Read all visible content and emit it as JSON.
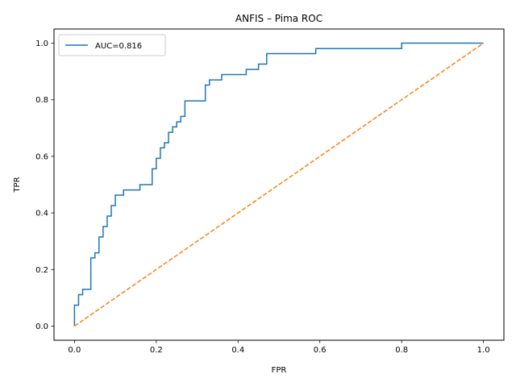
{
  "chart_data": {
    "type": "line",
    "title": "ANFIS – Pima ROC",
    "xlabel": "FPR",
    "ylabel": "TPR",
    "xlim": [
      -0.05,
      1.05
    ],
    "ylim": [
      -0.05,
      1.05
    ],
    "xticks": [
      0.0,
      0.2,
      0.4,
      0.6,
      0.8,
      1.0
    ],
    "yticks": [
      0.0,
      0.2,
      0.4,
      0.6,
      0.8,
      1.0
    ],
    "tick_labels_x": [
      "0.0",
      "0.2",
      "0.4",
      "0.6",
      "0.8",
      "1.0"
    ],
    "tick_labels_y": [
      "0.0",
      "0.2",
      "0.4",
      "0.6",
      "0.8",
      "1.0"
    ],
    "grid": false,
    "legend_position": "top-left",
    "series": [
      {
        "name": "AUC=0.816",
        "color": "#1f77b4",
        "style": "solid",
        "x": [
          0.0,
          0.0,
          0.01,
          0.01,
          0.02,
          0.02,
          0.04,
          0.04,
          0.05,
          0.05,
          0.06,
          0.06,
          0.07,
          0.07,
          0.08,
          0.08,
          0.09,
          0.09,
          0.1,
          0.1,
          0.12,
          0.12,
          0.16,
          0.16,
          0.19,
          0.19,
          0.2,
          0.2,
          0.21,
          0.21,
          0.22,
          0.22,
          0.23,
          0.23,
          0.24,
          0.24,
          0.25,
          0.25,
          0.26,
          0.26,
          0.27,
          0.27,
          0.32,
          0.32,
          0.33,
          0.33,
          0.36,
          0.36,
          0.42,
          0.42,
          0.45,
          0.45,
          0.47,
          0.47,
          0.59,
          0.59,
          0.8,
          0.8,
          1.0
        ],
        "y": [
          0.0,
          0.074,
          0.074,
          0.111,
          0.111,
          0.13,
          0.13,
          0.241,
          0.241,
          0.259,
          0.259,
          0.315,
          0.315,
          0.352,
          0.352,
          0.389,
          0.389,
          0.426,
          0.426,
          0.463,
          0.463,
          0.481,
          0.481,
          0.5,
          0.5,
          0.556,
          0.556,
          0.593,
          0.593,
          0.63,
          0.63,
          0.648,
          0.648,
          0.685,
          0.685,
          0.704,
          0.704,
          0.722,
          0.722,
          0.741,
          0.741,
          0.796,
          0.796,
          0.852,
          0.852,
          0.87,
          0.87,
          0.889,
          0.889,
          0.907,
          0.907,
          0.926,
          0.926,
          0.963,
          0.963,
          0.981,
          0.981,
          1.0,
          1.0
        ]
      },
      {
        "color": "#ff7f0e",
        "style": "dashed",
        "x": [
          0.0,
          1.0
        ],
        "y": [
          0.0,
          1.0
        ]
      }
    ]
  }
}
